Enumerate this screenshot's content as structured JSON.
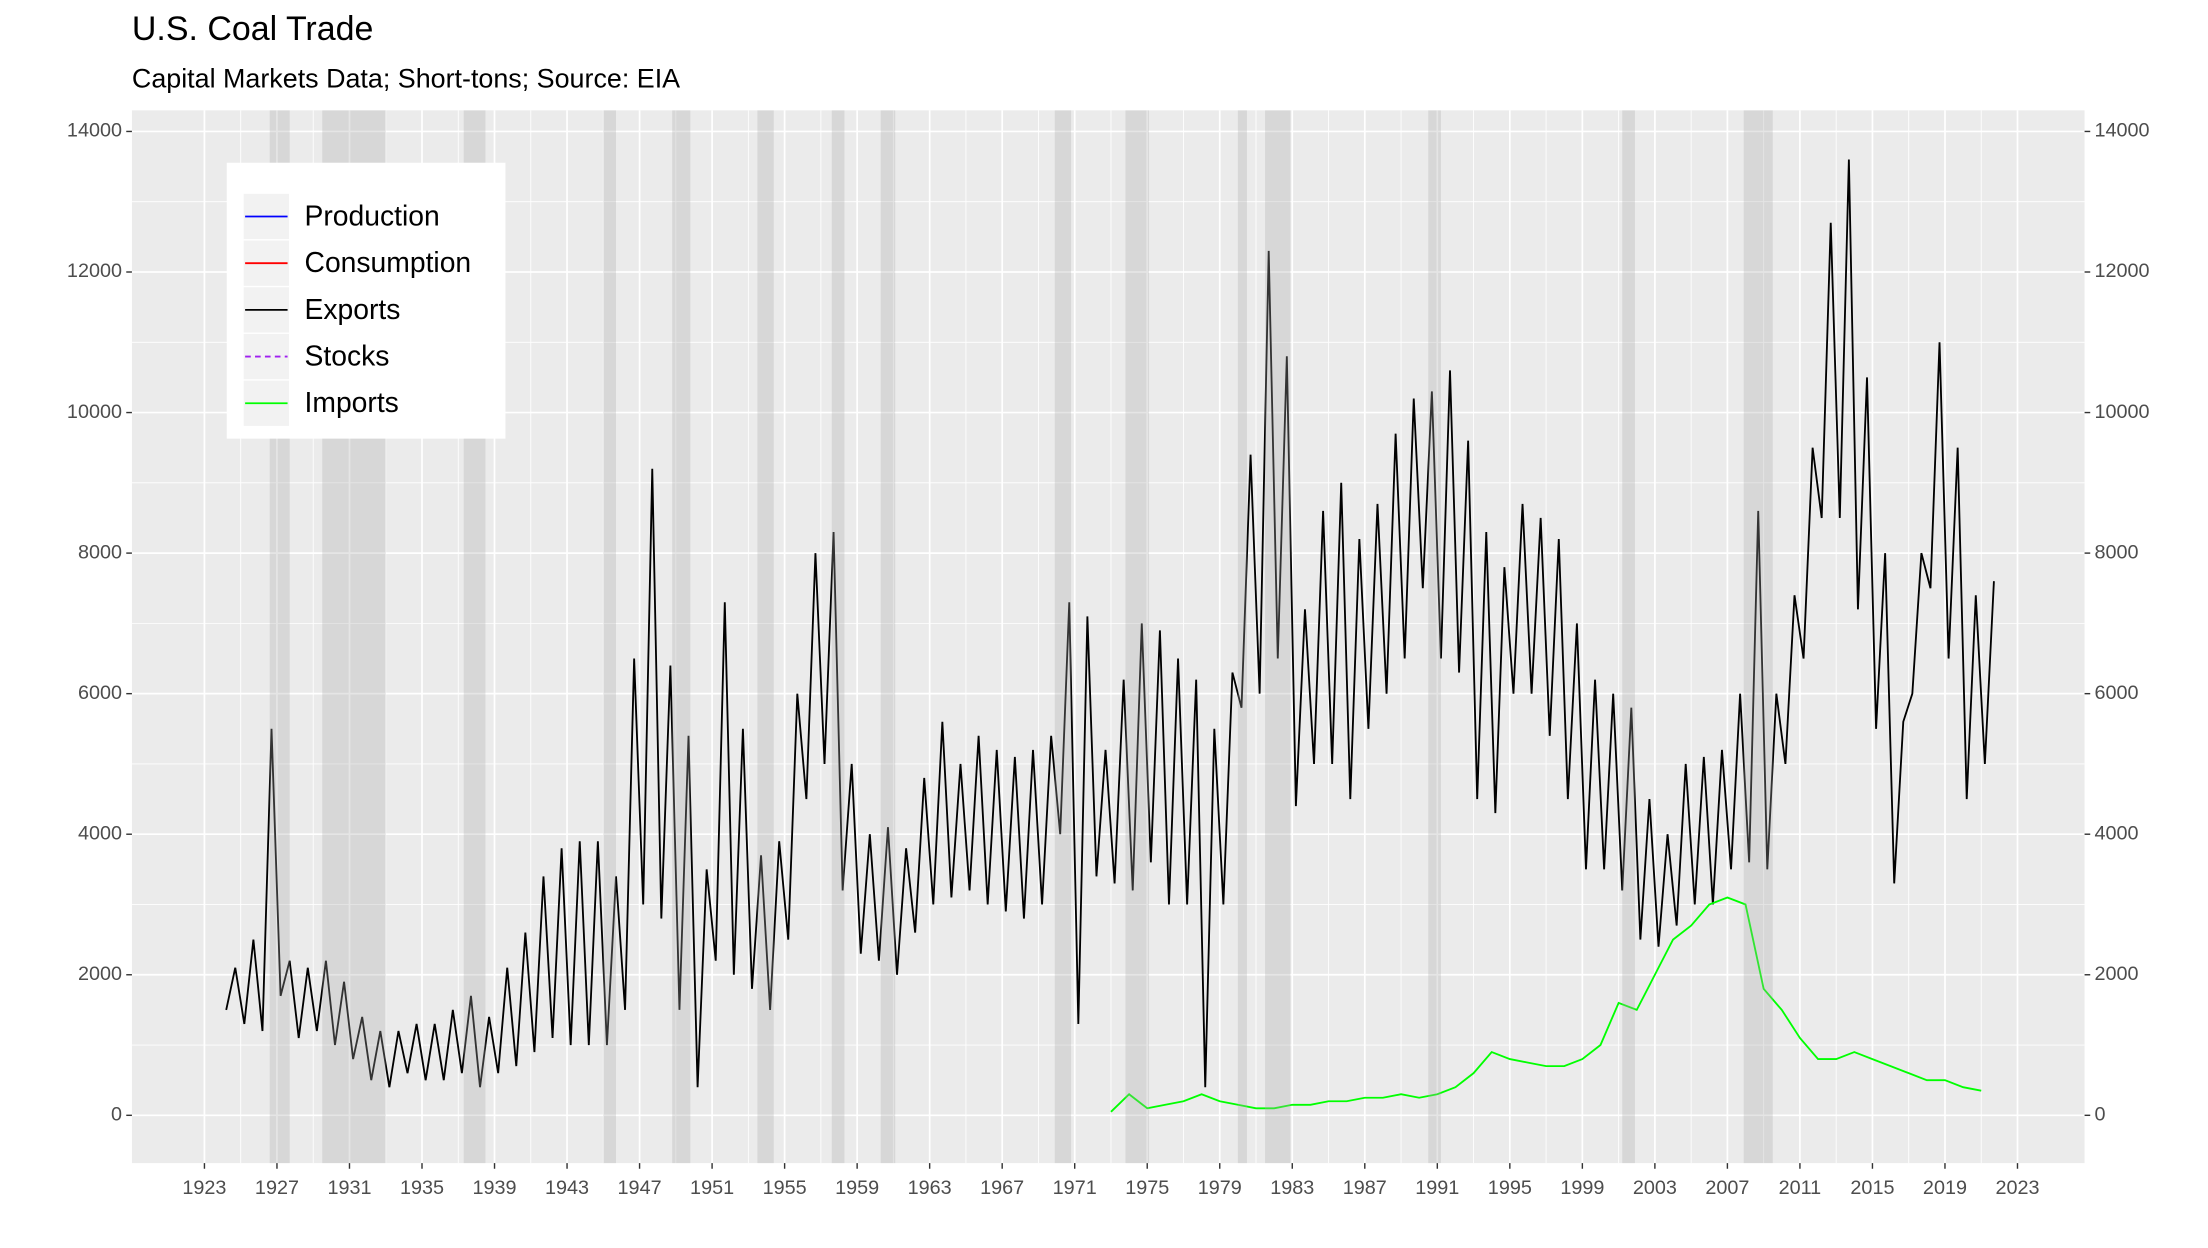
{
  "chart_data": {
    "type": "line",
    "title": "U.S. Coal Trade",
    "subtitle": "Capital Markets Data; Short-tons; Source: EIA",
    "xlim": [
      1919,
      2026.7
    ],
    "xticks": [
      1923,
      1927,
      1931,
      1935,
      1939,
      1943,
      1947,
      1951,
      1955,
      1959,
      1963,
      1967,
      1971,
      1975,
      1979,
      1983,
      1987,
      1991,
      1995,
      1999,
      2003,
      2007,
      2011,
      2015,
      2019,
      2023
    ],
    "ylim": [
      -680,
      14300
    ],
    "yticks": [
      0,
      2000,
      4000,
      6000,
      8000,
      10000,
      12000,
      14000
    ],
    "y2lim": [
      -680,
      14300
    ],
    "y2ticks": [
      0,
      2000,
      4000,
      6000,
      8000,
      10000,
      12000,
      14000
    ],
    "grid": true,
    "legend_position": "top-left",
    "recessions": [
      [
        1926.6,
        1927.7
      ],
      [
        1929.5,
        1933.0
      ],
      [
        1937.3,
        1938.5
      ],
      [
        1945.0,
        1945.7
      ],
      [
        1948.8,
        1949.8
      ],
      [
        1953.5,
        1954.4
      ],
      [
        1957.6,
        1958.3
      ],
      [
        1960.3,
        1961.1
      ],
      [
        1969.9,
        1970.8
      ],
      [
        1973.8,
        1975.1
      ],
      [
        1980.0,
        1980.5
      ],
      [
        1981.5,
        1982.9
      ],
      [
        1990.5,
        1991.2
      ],
      [
        2001.2,
        2001.9
      ],
      [
        2007.9,
        2009.5
      ]
    ],
    "series": [
      {
        "name": "Production",
        "color": "#0000ff",
        "linestyle": "solid",
        "x": [],
        "values": []
      },
      {
        "name": "Consumption",
        "color": "#ff0000",
        "linestyle": "solid",
        "x": [],
        "values": []
      },
      {
        "name": "Exports",
        "color": "#000000",
        "linestyle": "solid",
        "x": [
          1924.2,
          1924.7,
          1925.2,
          1925.7,
          1926.2,
          1926.7,
          1927.2,
          1927.7,
          1928.2,
          1928.7,
          1929.2,
          1929.7,
          1930.2,
          1930.7,
          1931.2,
          1931.7,
          1932.2,
          1932.7,
          1933.2,
          1933.7,
          1934.2,
          1934.7,
          1935.2,
          1935.7,
          1936.2,
          1936.7,
          1937.2,
          1937.7,
          1938.2,
          1938.7,
          1939.2,
          1939.7,
          1940.2,
          1940.7,
          1941.2,
          1941.7,
          1942.2,
          1942.7,
          1943.2,
          1943.7,
          1944.2,
          1944.7,
          1945.2,
          1945.7,
          1946.2,
          1946.7,
          1947.2,
          1947.7,
          1948.2,
          1948.7,
          1949.2,
          1949.7,
          1950.2,
          1950.7,
          1951.2,
          1951.7,
          1952.2,
          1952.7,
          1953.2,
          1953.7,
          1954.2,
          1954.7,
          1955.2,
          1955.7,
          1956.2,
          1956.7,
          1957.2,
          1957.7,
          1958.2,
          1958.7,
          1959.2,
          1959.7,
          1960.2,
          1960.7,
          1961.2,
          1961.7,
          1962.2,
          1962.7,
          1963.2,
          1963.7,
          1964.2,
          1964.7,
          1965.2,
          1965.7,
          1966.2,
          1966.7,
          1967.2,
          1967.7,
          1968.2,
          1968.7,
          1969.2,
          1969.7,
          1970.2,
          1970.7,
          1971.2,
          1971.7,
          1972.2,
          1972.7,
          1973.2,
          1973.7,
          1974.2,
          1974.7,
          1975.2,
          1975.7,
          1976.2,
          1976.7,
          1977.2,
          1977.7,
          1978.2,
          1978.7,
          1979.2,
          1979.7,
          1980.2,
          1980.7,
          1981.2,
          1981.7,
          1982.2,
          1982.7,
          1983.2,
          1983.7,
          1984.2,
          1984.7,
          1985.2,
          1985.7,
          1986.2,
          1986.7,
          1987.2,
          1987.7,
          1988.2,
          1988.7,
          1989.2,
          1989.7,
          1990.2,
          1990.7,
          1991.2,
          1991.7,
          1992.2,
          1992.7,
          1993.2,
          1993.7,
          1994.2,
          1994.7,
          1995.2,
          1995.7,
          1996.2,
          1996.7,
          1997.2,
          1997.7,
          1998.2,
          1998.7,
          1999.2,
          1999.7,
          2000.2,
          2000.7,
          2001.2,
          2001.7,
          2002.2,
          2002.7,
          2003.2,
          2003.7,
          2004.2,
          2004.7,
          2005.2,
          2005.7,
          2006.2,
          2006.7,
          2007.2,
          2007.7,
          2008.2,
          2008.7,
          2009.2,
          2009.7,
          2010.2,
          2010.7,
          2011.2,
          2011.7,
          2012.2,
          2012.7,
          2013.2,
          2013.7,
          2014.2,
          2014.7,
          2015.2,
          2015.7,
          2016.2,
          2016.7,
          2017.2,
          2017.7,
          2018.2,
          2018.7,
          2019.2,
          2019.7,
          2020.2,
          2020.7,
          2021.2,
          2021.7
        ],
        "values": [
          1500,
          2100,
          1300,
          2500,
          1200,
          5500,
          1700,
          2200,
          1100,
          2100,
          1200,
          2200,
          1000,
          1900,
          800,
          1400,
          500,
          1200,
          400,
          1200,
          600,
          1300,
          500,
          1300,
          500,
          1500,
          600,
          1700,
          400,
          1400,
          600,
          2100,
          700,
          2600,
          900,
          3400,
          1100,
          3800,
          1000,
          3900,
          1000,
          3900,
          1000,
          3400,
          1500,
          6500,
          3000,
          9200,
          2800,
          6400,
          1500,
          5400,
          400,
          3500,
          2200,
          7300,
          2000,
          5500,
          1800,
          3700,
          1500,
          3900,
          2500,
          6000,
          4500,
          8000,
          5000,
          8300,
          3200,
          5000,
          2300,
          4000,
          2200,
          4100,
          2000,
          3800,
          2600,
          4800,
          3000,
          5600,
          3100,
          5000,
          3200,
          5400,
          3000,
          5200,
          2900,
          5100,
          2800,
          5200,
          3000,
          5400,
          4000,
          7300,
          1300,
          7100,
          3400,
          5200,
          3300,
          6200,
          3200,
          7000,
          3600,
          6900,
          3000,
          6500,
          3000,
          6200,
          400,
          5500,
          3000,
          6300,
          5800,
          9400,
          6000,
          12300,
          6500,
          10800,
          4400,
          7200,
          5000,
          8600,
          5000,
          9000,
          4500,
          8200,
          5500,
          8700,
          6000,
          9700,
          6500,
          10200,
          7500,
          10300,
          6500,
          10600,
          6300,
          9600,
          4500,
          8300,
          4300,
          7800,
          6000,
          8700,
          6000,
          8500,
          5400,
          8200,
          4500,
          7000,
          3500,
          6200,
          3500,
          6000,
          3200,
          5800,
          2500,
          4500,
          2400,
          4000,
          2700,
          5000,
          3000,
          5100,
          3000,
          5200,
          3500,
          6000,
          3600,
          8600,
          3500,
          6000,
          5000,
          7400,
          6500,
          9500,
          8500,
          12700,
          8500,
          13600,
          7200,
          10500,
          5500,
          8000,
          3300,
          5600,
          6000,
          8000,
          7500,
          11000,
          6500,
          9500,
          4500,
          7400,
          5000,
          7600
        ]
      },
      {
        "name": "Stocks",
        "color": "#a020f0",
        "linestyle": "dashed",
        "x": [],
        "values": []
      },
      {
        "name": "Imports",
        "color": "#00ff00",
        "linestyle": "solid",
        "x": [
          1973,
          1974,
          1975,
          1976,
          1977,
          1978,
          1979,
          1980,
          1981,
          1982,
          1983,
          1984,
          1985,
          1986,
          1987,
          1988,
          1989,
          1990,
          1991,
          1992,
          1993,
          1994,
          1995,
          1996,
          1997,
          1998,
          1999,
          2000,
          2001,
          2002,
          2003,
          2004,
          2005,
          2006,
          2007,
          2008,
          2009,
          2010,
          2011,
          2012,
          2013,
          2014,
          2015,
          2016,
          2017,
          2018,
          2019,
          2020,
          2021
        ],
        "values": [
          50,
          300,
          100,
          150,
          200,
          300,
          200,
          150,
          100,
          100,
          150,
          150,
          200,
          200,
          250,
          250,
          300,
          250,
          300,
          400,
          600,
          900,
          800,
          750,
          700,
          700,
          800,
          1000,
          1600,
          1500,
          2000,
          2500,
          2700,
          3000,
          3100,
          3000,
          1800,
          1500,
          1100,
          800,
          800,
          900,
          800,
          700,
          600,
          500,
          500,
          400,
          350
        ]
      }
    ]
  }
}
